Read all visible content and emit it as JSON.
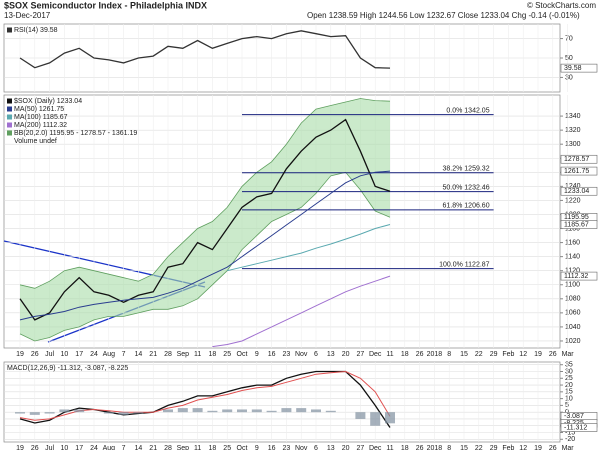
{
  "header": {
    "title": "$SOX Semiconductor Index - Philadelphia INDX",
    "date": "13-Dec-2017",
    "quote": "Open 1238.59 High 1244.56 Low 1232.67 Close 1233.04 Chg -0.14 (-0.01%)",
    "credit": "© StockCharts.com"
  },
  "chart_data": [
    {
      "type": "line",
      "panel": "rsi",
      "categories": [
        "19",
        "26",
        "Jul",
        "10",
        "17",
        "24",
        "Aug",
        "7",
        "14",
        "21",
        "28",
        "Sep",
        "11",
        "18",
        "25",
        "Oct",
        "9",
        "16",
        "23",
        "Nov",
        "6",
        "13",
        "20",
        "27",
        "Dec",
        "11",
        "18",
        "26",
        "2018",
        "8",
        "15",
        "22",
        "29",
        "Feb",
        "12",
        "19",
        "26",
        "Mar"
      ],
      "series": [
        {
          "name": "RSI(14) 39.58",
          "color": "#333333",
          "values": [
            50,
            40,
            45,
            55,
            60,
            50,
            48,
            45,
            50,
            52,
            62,
            60,
            68,
            60,
            65,
            70,
            72,
            70,
            75,
            78,
            75,
            72,
            73,
            50,
            40,
            39.58,
            null,
            null,
            null,
            null,
            null,
            null,
            null,
            null,
            null,
            null,
            null,
            null
          ]
        }
      ],
      "ylim": [
        15,
        85
      ],
      "yticks": [
        70,
        50,
        30
      ],
      "price_tags": [
        39.58
      ]
    },
    {
      "type": "line",
      "panel": "price",
      "categories": [
        "19",
        "26",
        "Jul",
        "10",
        "17",
        "24",
        "Aug",
        "7",
        "14",
        "21",
        "28",
        "Sep",
        "11",
        "18",
        "25",
        "Oct",
        "9",
        "16",
        "23",
        "Nov",
        "6",
        "13",
        "20",
        "27",
        "Dec",
        "11",
        "18",
        "26",
        "2018",
        "8",
        "15",
        "22",
        "29",
        "Feb",
        "12",
        "19",
        "26",
        "Mar"
      ],
      "band": {
        "name": "BB(20,2.0) 1195.95 - 1278.57 - 1361.19",
        "color": "#5f9f5f",
        "upper": [
          1100,
          1095,
          1105,
          1120,
          1125,
          1120,
          1115,
          1110,
          1105,
          1115,
          1140,
          1160,
          1180,
          1190,
          1210,
          1240,
          1260,
          1275,
          1300,
          1330,
          1350,
          1355,
          1360,
          1365,
          1362,
          1361.19,
          null,
          null,
          null,
          null,
          null,
          null,
          null,
          null,
          null,
          null,
          null,
          null
        ],
        "lower": [
          1030,
          1020,
          1025,
          1035,
          1040,
          1050,
          1055,
          1055,
          1060,
          1065,
          1065,
          1070,
          1080,
          1100,
          1120,
          1150,
          1170,
          1190,
          1200,
          1210,
          1230,
          1255,
          1260,
          1235,
          1205,
          1195.95,
          null,
          null,
          null,
          null,
          null,
          null,
          null,
          null,
          null,
          null,
          null,
          null
        ]
      },
      "series": [
        {
          "name": "$SOX (Daily) 1233.04",
          "color": "#111111",
          "values": [
            1080,
            1050,
            1060,
            1090,
            1110,
            1090,
            1085,
            1075,
            1085,
            1090,
            1125,
            1130,
            1160,
            1150,
            1180,
            1210,
            1225,
            1230,
            1265,
            1290,
            1310,
            1320,
            1335,
            1290,
            1240,
            1233.04,
            null,
            null,
            null,
            null,
            null,
            null,
            null,
            null,
            null,
            null,
            null,
            null
          ]
        },
        {
          "name": "MA(50) 1261.75",
          "color": "#2a3d8f",
          "values": [
            1050,
            1055,
            1058,
            1062,
            1068,
            1072,
            1075,
            1078,
            1080,
            1082,
            1088,
            1095,
            1105,
            1115,
            1125,
            1140,
            1155,
            1170,
            1185,
            1200,
            1215,
            1230,
            1245,
            1255,
            1260,
            1261.75,
            null,
            null,
            null,
            null,
            null,
            null,
            null,
            null,
            null,
            null,
            null,
            null
          ]
        },
        {
          "name": "MA(100) 1185.67",
          "color": "#5aa9b0",
          "values": [
            null,
            null,
            null,
            null,
            null,
            null,
            null,
            null,
            null,
            null,
            null,
            null,
            null,
            null,
            1120,
            1125,
            1130,
            1135,
            1140,
            1145,
            1152,
            1158,
            1165,
            1172,
            1180,
            1185.67,
            null,
            null,
            null,
            null,
            null,
            null,
            null,
            null,
            null,
            null,
            null,
            null
          ]
        },
        {
          "name": "MA(200) 1112.32",
          "color": "#a070d0",
          "values": [
            null,
            null,
            null,
            null,
            null,
            null,
            null,
            null,
            null,
            null,
            null,
            null,
            null,
            1012,
            1015,
            1020,
            1030,
            1040,
            1050,
            1060,
            1070,
            1080,
            1090,
            1098,
            1105,
            1112.32,
            null,
            null,
            null,
            null,
            null,
            null,
            null,
            null,
            null,
            null,
            null,
            null
          ]
        }
      ],
      "annotation": "Volume undef",
      "fib_levels": [
        {
          "value": 1342.05,
          "label": "0.0% 1342.05"
        },
        {
          "value": 1259.32,
          "label": "38.2% 1259.32"
        },
        {
          "value": 1232.46,
          "label": "50.0% 1232.46"
        },
        {
          "value": 1206.6,
          "label": "61.8% 1206.60"
        },
        {
          "value": 1122.87,
          "label": "100.0% 1122.87"
        }
      ],
      "ylim": [
        1010,
        1370
      ],
      "yticks": [
        1020,
        1040,
        1060,
        1080,
        1100,
        1120,
        1140,
        1160,
        1180,
        1200,
        1220,
        1240,
        1260,
        1280,
        1300,
        1320,
        1340
      ],
      "price_tags": [
        1278.57,
        1261.75,
        1233.04,
        1195.95,
        1185.67,
        1112.32
      ]
    },
    {
      "type": "line",
      "panel": "macd",
      "categories": [
        "19",
        "26",
        "Jul",
        "10",
        "17",
        "24",
        "Aug",
        "7",
        "14",
        "21",
        "28",
        "Sep",
        "11",
        "18",
        "25",
        "Oct",
        "9",
        "16",
        "23",
        "Nov",
        "6",
        "13",
        "20",
        "27",
        "Dec",
        "11",
        "18",
        "26",
        "2018",
        "8",
        "15",
        "22",
        "29",
        "Feb",
        "12",
        "19",
        "26",
        "Mar"
      ],
      "title": "MACD(12,26,9) -11.312, -3.087, -8.225",
      "series": [
        {
          "name": "MACD",
          "color": "#111111",
          "values": [
            -5,
            -8,
            -6,
            0,
            3,
            2,
            0,
            -2,
            -1,
            0,
            5,
            8,
            12,
            12,
            15,
            18,
            20,
            20,
            25,
            28,
            30,
            30,
            30,
            20,
            5,
            -11.312,
            null,
            null,
            null,
            null,
            null,
            null,
            null,
            null,
            null,
            null,
            null,
            null
          ]
        },
        {
          "name": "Signal",
          "color": "#e05050",
          "values": [
            -4,
            -6,
            -5,
            -2,
            1,
            2,
            1,
            0,
            0,
            0,
            3,
            5,
            9,
            11,
            13,
            16,
            18,
            19,
            22,
            25,
            28,
            29,
            30,
            25,
            15,
            -3.087,
            null,
            null,
            null,
            null,
            null,
            null,
            null,
            null,
            null,
            null,
            null,
            null
          ]
        },
        {
          "name": "Histogram",
          "color": "#8090a0",
          "kind": "bar",
          "values": [
            -1,
            -2,
            -1,
            2,
            2,
            0,
            -1,
            -2,
            -1,
            0,
            2,
            3,
            3,
            1,
            2,
            2,
            2,
            1,
            3,
            3,
            2,
            1,
            0,
            -5,
            -10,
            -8.225,
            null,
            null,
            null,
            null,
            null,
            null,
            null,
            null,
            null,
            null,
            null,
            null
          ]
        }
      ],
      "ylim": [
        -22,
        37
      ],
      "yticks": [
        35,
        30,
        25,
        20,
        15,
        10,
        5,
        0,
        -5,
        -10,
        -15,
        -20
      ],
      "price_tags": [
        -3.087,
        -8.225,
        -11.312
      ]
    }
  ]
}
